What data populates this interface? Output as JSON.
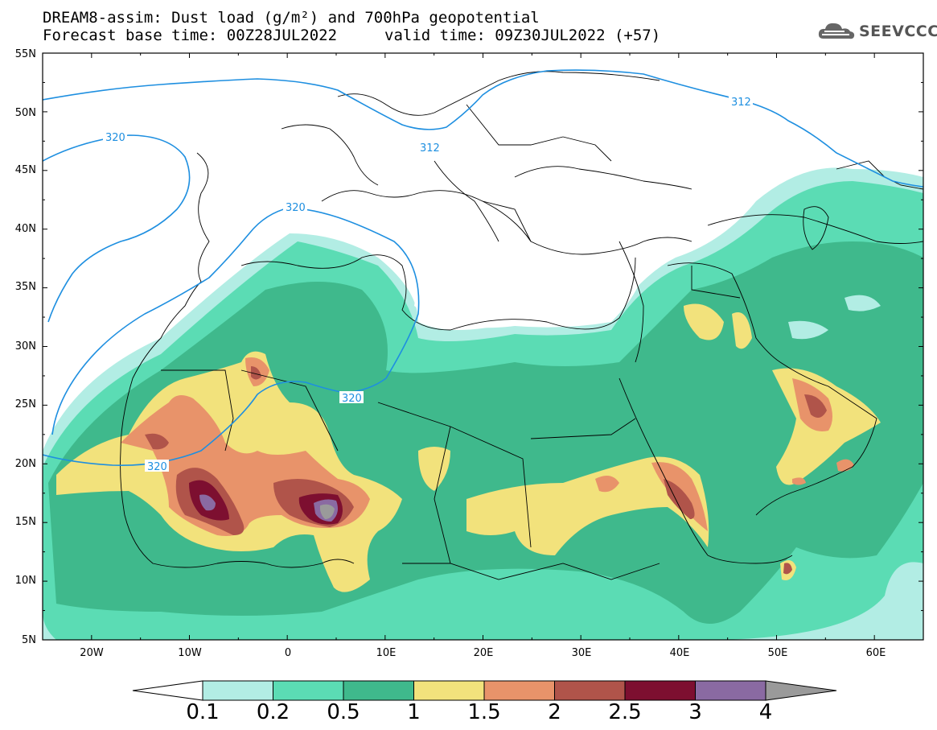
{
  "title": {
    "line1": "DREAM8-assim: Dust load (g/m²) and 700hPa geopotential",
    "line2a": "Forecast base time: 00Z28JUL2022",
    "line2b": "valid time: 09Z30JUL2022 (+57)"
  },
  "logo": {
    "text": "SEEVCCC",
    "icon": "cloud-logo-icon"
  },
  "map": {
    "lat_labels": [
      "55N",
      "50N",
      "45N",
      "40N",
      "35N",
      "30N",
      "25N",
      "20N",
      "15N",
      "10N",
      "5N"
    ],
    "lon_labels": [
      "20W",
      "10W",
      "0",
      "10E",
      "20E",
      "30E",
      "40E",
      "50E",
      "60E"
    ],
    "extent": {
      "lon_min": -25,
      "lon_max": 65,
      "lat_min": 5,
      "lat_max": 55
    },
    "contours": [
      {
        "label": "320",
        "color": "#1e8fe0"
      },
      {
        "label": "320",
        "color": "#1e8fe0"
      },
      {
        "label": "320",
        "color": "#1e8fe0"
      },
      {
        "label": "320",
        "color": "#1e8fe0"
      },
      {
        "label": "312",
        "color": "#1e8fe0"
      },
      {
        "label": "312",
        "color": "#1e8fe0"
      }
    ]
  },
  "colorbar": {
    "labels": [
      "0.1",
      "0.2",
      "0.5",
      "1",
      "1.5",
      "2",
      "2.5",
      "3",
      "4"
    ],
    "colors": [
      "#b2ede4",
      "#5bdcb4",
      "#3fb98c",
      "#f2e27c",
      "#e8936a",
      "#b0544a",
      "#7d0f30",
      "#8a6aa2",
      "#9a9a9a"
    ]
  }
}
